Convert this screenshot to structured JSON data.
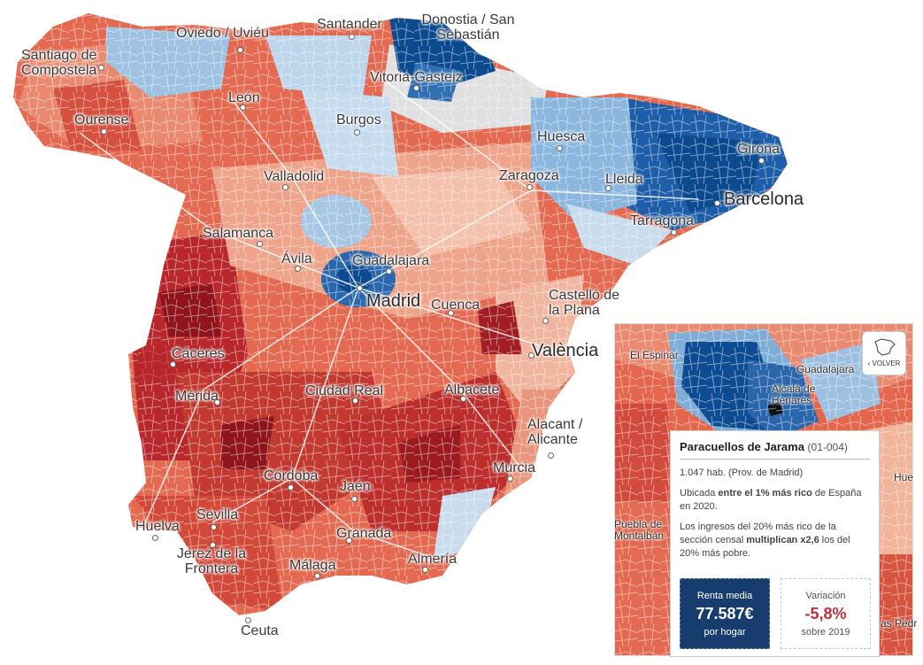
{
  "map": {
    "cities": [
      {
        "id": "santiago",
        "name": "Santiago de Compostela"
      },
      {
        "id": "oviedo",
        "name": "Oviedo / Uviéu"
      },
      {
        "id": "santander",
        "name": "Santander"
      },
      {
        "id": "donostia",
        "name": "Donostia / San Sebastián"
      },
      {
        "id": "vitoria",
        "name": "Vitoria-Gasteiz"
      },
      {
        "id": "leon",
        "name": "León"
      },
      {
        "id": "ourense",
        "name": "Ourense"
      },
      {
        "id": "burgos",
        "name": "Burgos"
      },
      {
        "id": "huesca",
        "name": "Huesca"
      },
      {
        "id": "girona",
        "name": "Girona"
      },
      {
        "id": "valladolid",
        "name": "Valladolid"
      },
      {
        "id": "zaragoza",
        "name": "Zaragoza"
      },
      {
        "id": "lleida",
        "name": "Lleida"
      },
      {
        "id": "barcelona",
        "name": "Barcelona"
      },
      {
        "id": "tarragona",
        "name": "Tarragona"
      },
      {
        "id": "salamanca",
        "name": "Salamanca"
      },
      {
        "id": "avila",
        "name": "Ávila"
      },
      {
        "id": "guadalajara",
        "name": "Guadalajara"
      },
      {
        "id": "madrid",
        "name": "Madrid"
      },
      {
        "id": "cuenca",
        "name": "Cuenca"
      },
      {
        "id": "castello",
        "name": "Castelló de la Plana"
      },
      {
        "id": "caceres",
        "name": "Cáceres"
      },
      {
        "id": "valencia",
        "name": "València"
      },
      {
        "id": "merida",
        "name": "Mérida"
      },
      {
        "id": "ciudadreal",
        "name": "Ciudad Real"
      },
      {
        "id": "albacete",
        "name": "Albacete"
      },
      {
        "id": "alacant",
        "name": "Alacant / Alicante"
      },
      {
        "id": "cordoba",
        "name": "Córdoba"
      },
      {
        "id": "jaen",
        "name": "Jaén"
      },
      {
        "id": "murcia",
        "name": "Murcia"
      },
      {
        "id": "sevilla",
        "name": "Sevilla"
      },
      {
        "id": "huelva",
        "name": "Huelva"
      },
      {
        "id": "granada",
        "name": "Granada"
      },
      {
        "id": "jerez",
        "name": "Jerez de la Frontera"
      },
      {
        "id": "malaga",
        "name": "Málaga"
      },
      {
        "id": "almeria",
        "name": "Almería"
      },
      {
        "id": "ceuta",
        "name": "Ceuta"
      }
    ]
  },
  "inset": {
    "labels": {
      "el_espinar": "El Espinar",
      "guadalajara": "Guadalajara",
      "alcala": "Alcalá de Henares",
      "puebla": "Puebla de Montalbán",
      "hue": "Hue",
      "pedr": "as Pedr"
    },
    "back_label": "‹ VOLVER",
    "back_icon": "spain-outline-icon"
  },
  "tooltip": {
    "name": "Paracuellos de Jarama",
    "code": "(01-004)",
    "population": "1.047 hab. (Prov. de Madrid)",
    "rank_prefix": "Ubicada ",
    "rank_bold": "entre el 1% más rico",
    "rank_suffix": " de España en 2020.",
    "ratio_prefix": "Los ingresos del 20% más rico de la sección censal ",
    "ratio_bold": "multiplican x2,6",
    "ratio_suffix": " los del 20% más pobre.",
    "renta": {
      "label": "Renta media",
      "value": "77.587€",
      "unit": "por hogar"
    },
    "variacion": {
      "label": "Variación",
      "value": "-5,8%",
      "since": "sobre 2019"
    }
  },
  "colors": {
    "rich_dark": "#0b4a8f",
    "rich": "#3e7fc1",
    "rich_light": "#b9d4ea",
    "neutral": "#e3e3e3",
    "poor_light": "#f2b49b",
    "poor": "#e0604a",
    "poor_dark": "#b0222a",
    "tooltip_box": "#163d6e",
    "negative": "#c0303a"
  }
}
